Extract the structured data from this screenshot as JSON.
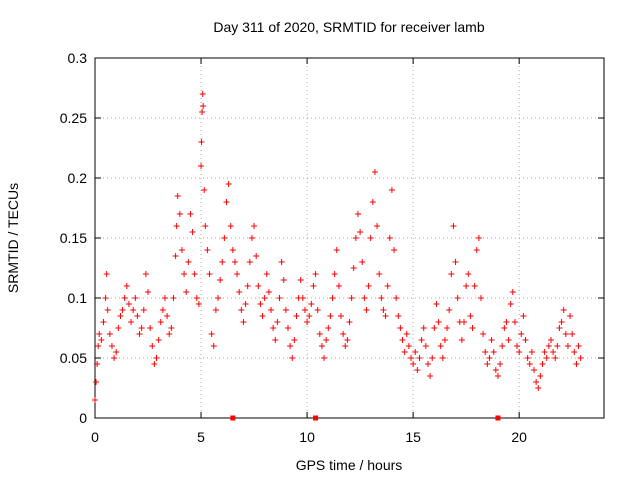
{
  "chart_data": {
    "type": "scatter",
    "title": "Day 311 of 2020, SRMTID for receiver lamb",
    "xlabel": "GPS time / hours",
    "ylabel": "SRMTID / TECUs",
    "xlim": [
      0,
      24
    ],
    "ylim": [
      0,
      0.3
    ],
    "x_ticks": [
      0,
      5,
      10,
      15,
      20
    ],
    "x_tick_labels": [
      "0",
      "5",
      "10",
      "15",
      "20"
    ],
    "y_ticks": [
      0,
      0.05,
      0.1,
      0.15,
      0.2,
      0.25,
      0.3
    ],
    "y_tick_labels": [
      "0",
      "0.05",
      "0.1",
      "0.15",
      "0.2",
      "0.25",
      "0.3"
    ],
    "grid": true,
    "marker": "plus",
    "series_color": "#ff0000",
    "series": [
      {
        "name": "SRMTID",
        "points": [
          [
            0.0,
            0.015
          ],
          [
            0.05,
            0.03
          ],
          [
            0.1,
            0.045
          ],
          [
            0.15,
            0.06
          ],
          [
            0.2,
            0.07
          ],
          [
            0.3,
            0.065
          ],
          [
            0.4,
            0.08
          ],
          [
            0.5,
            0.1
          ],
          [
            0.55,
            0.12
          ],
          [
            0.6,
            0.09
          ],
          [
            0.7,
            0.07
          ],
          [
            0.8,
            0.06
          ],
          [
            0.9,
            0.05
          ],
          [
            1.0,
            0.055
          ],
          [
            1.1,
            0.075
          ],
          [
            1.2,
            0.085
          ],
          [
            1.3,
            0.09
          ],
          [
            1.4,
            0.1
          ],
          [
            1.5,
            0.11
          ],
          [
            1.6,
            0.095
          ],
          [
            1.7,
            0.08
          ],
          [
            1.8,
            0.09
          ],
          [
            1.9,
            0.1
          ],
          [
            2.0,
            0.085
          ],
          [
            2.1,
            0.07
          ],
          [
            2.2,
            0.075
          ],
          [
            2.3,
            0.09
          ],
          [
            2.4,
            0.12
          ],
          [
            2.5,
            0.105
          ],
          [
            2.6,
            0.075
          ],
          [
            2.7,
            0.06
          ],
          [
            2.8,
            0.045
          ],
          [
            2.9,
            0.05
          ],
          [
            3.0,
            0.065
          ],
          [
            3.1,
            0.08
          ],
          [
            3.2,
            0.09
          ],
          [
            3.3,
            0.1
          ],
          [
            3.4,
            0.085
          ],
          [
            3.5,
            0.07
          ],
          [
            3.6,
            0.075
          ],
          [
            3.7,
            0.1
          ],
          [
            3.8,
            0.135
          ],
          [
            3.85,
            0.16
          ],
          [
            3.9,
            0.185
          ],
          [
            4.0,
            0.17
          ],
          [
            4.1,
            0.14
          ],
          [
            4.2,
            0.12
          ],
          [
            4.3,
            0.105
          ],
          [
            4.4,
            0.13
          ],
          [
            4.5,
            0.17
          ],
          [
            4.6,
            0.155
          ],
          [
            4.7,
            0.12
          ],
          [
            4.8,
            0.1
          ],
          [
            4.9,
            0.095
          ],
          [
            5.0,
            0.21
          ],
          [
            5.02,
            0.23
          ],
          [
            5.05,
            0.255
          ],
          [
            5.08,
            0.27
          ],
          [
            5.1,
            0.26
          ],
          [
            5.15,
            0.19
          ],
          [
            5.2,
            0.16
          ],
          [
            5.3,
            0.14
          ],
          [
            5.4,
            0.12
          ],
          [
            5.5,
            0.07
          ],
          [
            5.6,
            0.06
          ],
          [
            5.7,
            0.09
          ],
          [
            5.8,
            0.1
          ],
          [
            5.9,
            0.115
          ],
          [
            6.0,
            0.13
          ],
          [
            6.1,
            0.15
          ],
          [
            6.2,
            0.18
          ],
          [
            6.3,
            0.195
          ],
          [
            6.4,
            0.16
          ],
          [
            6.5,
            0.14
          ],
          [
            6.6,
            0.13
          ],
          [
            6.7,
            0.12
          ],
          [
            6.8,
            0.105
          ],
          [
            6.9,
            0.09
          ],
          [
            7.0,
            0.08
          ],
          [
            7.1,
            0.095
          ],
          [
            7.2,
            0.11
          ],
          [
            7.3,
            0.13
          ],
          [
            7.4,
            0.15
          ],
          [
            7.5,
            0.16
          ],
          [
            7.6,
            0.135
          ],
          [
            7.7,
            0.11
          ],
          [
            7.8,
            0.095
          ],
          [
            7.9,
            0.085
          ],
          [
            8.0,
            0.1
          ],
          [
            8.1,
            0.12
          ],
          [
            8.2,
            0.105
          ],
          [
            8.3,
            0.09
          ],
          [
            8.4,
            0.075
          ],
          [
            8.5,
            0.065
          ],
          [
            8.6,
            0.08
          ],
          [
            8.7,
            0.1
          ],
          [
            8.8,
            0.13
          ],
          [
            8.9,
            0.115
          ],
          [
            9.0,
            0.09
          ],
          [
            9.1,
            0.075
          ],
          [
            9.2,
            0.06
          ],
          [
            9.3,
            0.05
          ],
          [
            9.4,
            0.065
          ],
          [
            9.5,
            0.085
          ],
          [
            9.6,
            0.1
          ],
          [
            9.7,
            0.115
          ],
          [
            9.8,
            0.1
          ],
          [
            9.9,
            0.09
          ],
          [
            10.0,
            0.08
          ],
          [
            10.1,
            0.085
          ],
          [
            10.2,
            0.095
          ],
          [
            10.3,
            0.11
          ],
          [
            10.4,
            0.12
          ],
          [
            10.5,
            0.09
          ],
          [
            10.6,
            0.07
          ],
          [
            10.7,
            0.06
          ],
          [
            10.8,
            0.05
          ],
          [
            10.9,
            0.065
          ],
          [
            11.0,
            0.075
          ],
          [
            11.1,
            0.085
          ],
          [
            11.2,
            0.1
          ],
          [
            11.3,
            0.12
          ],
          [
            11.4,
            0.14
          ],
          [
            11.5,
            0.11
          ],
          [
            11.6,
            0.085
          ],
          [
            11.7,
            0.07
          ],
          [
            11.8,
            0.06
          ],
          [
            11.9,
            0.065
          ],
          [
            12.0,
            0.08
          ],
          [
            12.1,
            0.1
          ],
          [
            12.2,
            0.125
          ],
          [
            12.3,
            0.15
          ],
          [
            12.4,
            0.17
          ],
          [
            12.5,
            0.155
          ],
          [
            12.6,
            0.13
          ],
          [
            12.7,
            0.1
          ],
          [
            12.8,
            0.09
          ],
          [
            12.9,
            0.11
          ],
          [
            13.0,
            0.15
          ],
          [
            13.1,
            0.18
          ],
          [
            13.2,
            0.205
          ],
          [
            13.3,
            0.16
          ],
          [
            13.4,
            0.12
          ],
          [
            13.5,
            0.1
          ],
          [
            13.6,
            0.09
          ],
          [
            13.7,
            0.085
          ],
          [
            13.8,
            0.11
          ],
          [
            13.9,
            0.15
          ],
          [
            14.0,
            0.19
          ],
          [
            14.1,
            0.14
          ],
          [
            14.2,
            0.1
          ],
          [
            14.3,
            0.085
          ],
          [
            14.4,
            0.075
          ],
          [
            14.5,
            0.065
          ],
          [
            14.6,
            0.055
          ],
          [
            14.7,
            0.07
          ],
          [
            14.8,
            0.06
          ],
          [
            14.9,
            0.05
          ],
          [
            15.0,
            0.045
          ],
          [
            15.1,
            0.055
          ],
          [
            15.2,
            0.04
          ],
          [
            15.3,
            0.05
          ],
          [
            15.4,
            0.065
          ],
          [
            15.5,
            0.075
          ],
          [
            15.6,
            0.06
          ],
          [
            15.7,
            0.045
          ],
          [
            15.8,
            0.035
          ],
          [
            15.9,
            0.05
          ],
          [
            16.0,
            0.075
          ],
          [
            16.1,
            0.095
          ],
          [
            16.2,
            0.08
          ],
          [
            16.3,
            0.06
          ],
          [
            16.4,
            0.05
          ],
          [
            16.5,
            0.065
          ],
          [
            16.6,
            0.075
          ],
          [
            16.7,
            0.09
          ],
          [
            16.8,
            0.12
          ],
          [
            16.9,
            0.16
          ],
          [
            17.0,
            0.13
          ],
          [
            17.1,
            0.1
          ],
          [
            17.2,
            0.08
          ],
          [
            17.3,
            0.065
          ],
          [
            17.4,
            0.08
          ],
          [
            17.5,
            0.11
          ],
          [
            17.6,
            0.12
          ],
          [
            17.7,
            0.085
          ],
          [
            17.8,
            0.075
          ],
          [
            17.9,
            0.11
          ],
          [
            18.0,
            0.14
          ],
          [
            18.1,
            0.15
          ],
          [
            18.2,
            0.1
          ],
          [
            18.3,
            0.07
          ],
          [
            18.4,
            0.055
          ],
          [
            18.5,
            0.045
          ],
          [
            18.6,
            0.05
          ],
          [
            18.7,
            0.065
          ],
          [
            18.8,
            0.055
          ],
          [
            18.9,
            0.04
          ],
          [
            19.0,
            0.035
          ],
          [
            19.1,
            0.045
          ],
          [
            19.2,
            0.06
          ],
          [
            19.3,
            0.075
          ],
          [
            19.4,
            0.08
          ],
          [
            19.5,
            0.065
          ],
          [
            19.6,
            0.095
          ],
          [
            19.7,
            0.105
          ],
          [
            19.8,
            0.08
          ],
          [
            19.9,
            0.06
          ],
          [
            20.0,
            0.055
          ],
          [
            20.1,
            0.07
          ],
          [
            20.2,
            0.085
          ],
          [
            20.3,
            0.065
          ],
          [
            20.4,
            0.05
          ],
          [
            20.5,
            0.045
          ],
          [
            20.6,
            0.055
          ],
          [
            20.7,
            0.04
          ],
          [
            20.8,
            0.03
          ],
          [
            20.9,
            0.025
          ],
          [
            21.0,
            0.035
          ],
          [
            21.1,
            0.045
          ],
          [
            21.2,
            0.055
          ],
          [
            21.3,
            0.05
          ],
          [
            21.4,
            0.06
          ],
          [
            21.5,
            0.065
          ],
          [
            21.6,
            0.055
          ],
          [
            21.7,
            0.05
          ],
          [
            21.8,
            0.06
          ],
          [
            21.9,
            0.075
          ],
          [
            22.0,
            0.08
          ],
          [
            22.1,
            0.09
          ],
          [
            22.2,
            0.07
          ],
          [
            22.3,
            0.06
          ],
          [
            22.4,
            0.085
          ],
          [
            22.5,
            0.07
          ],
          [
            22.6,
            0.055
          ],
          [
            22.7,
            0.045
          ],
          [
            22.8,
            0.06
          ],
          [
            22.9,
            0.05
          ]
        ]
      }
    ],
    "x_markers": [
      6.5,
      10.4,
      19.0
    ]
  }
}
